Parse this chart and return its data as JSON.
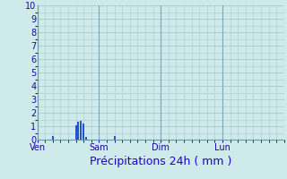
{
  "title": "Précipitations 24h ( mm )",
  "background_color": "#ceeaea",
  "plot_bg_color": "#ceeaea",
  "grid_color": "#adc8c8",
  "bar_color": "#2255cc",
  "ylim": [
    0,
    10
  ],
  "yticks": [
    0,
    1,
    2,
    3,
    4,
    5,
    6,
    7,
    8,
    9,
    10
  ],
  "day_labels": [
    "Ven",
    "Sam",
    "Dim",
    "Lun"
  ],
  "day_positions": [
    0,
    24,
    48,
    72
  ],
  "total_hours": 96,
  "bar_data": [
    {
      "hour": 6,
      "value": 0.3
    },
    {
      "hour": 15,
      "value": 1.1
    },
    {
      "hour": 16,
      "value": 1.35
    },
    {
      "hour": 17,
      "value": 1.4
    },
    {
      "hour": 18,
      "value": 1.2
    },
    {
      "hour": 19,
      "value": 0.2
    },
    {
      "hour": 30,
      "value": 0.3
    }
  ],
  "tick_fontsize": 7,
  "xlabel_fontsize": 9,
  "xlabel_color": "#2200cc"
}
